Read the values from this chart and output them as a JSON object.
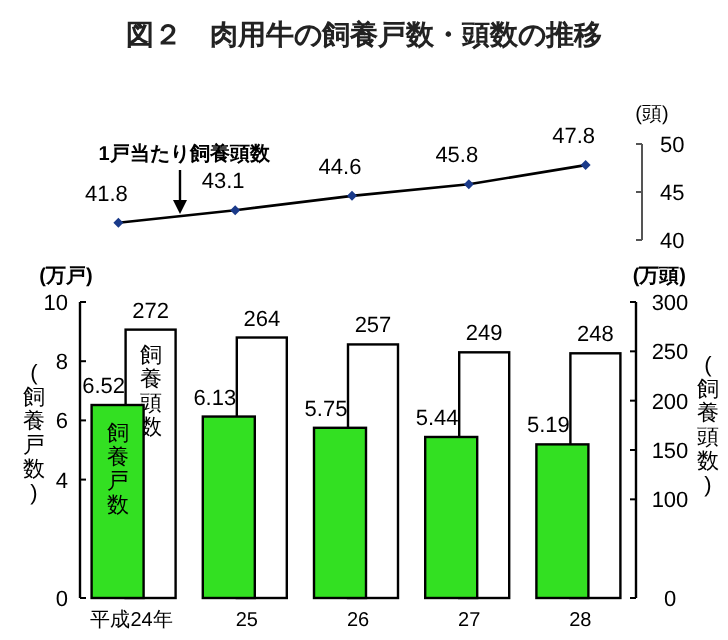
{
  "chart_data": [
    {
      "type": "line",
      "title": "図２　肉用牛の飼養戸数・頭数の推移",
      "categories": [
        null,
        null,
        null,
        null,
        null
      ],
      "series": [
        {
          "name": "1戸当たり飼養頭数",
          "color": "#000000",
          "values": [
            41.8,
            43.1,
            44.6,
            45.8,
            47.8
          ]
        }
      ],
      "ylim": [
        40,
        50
      ],
      "yticks": [
        40,
        45,
        50
      ],
      "ylabel": "(頭)",
      "data_labels": true,
      "marker": "diamond",
      "tick_labels": "y"
    },
    {
      "type": "bar",
      "categories": [
        "平成24年",
        "25",
        "26",
        "27",
        "28"
      ],
      "series": [
        {
          "name": "飼養戸数",
          "color": "#33e022",
          "values": [
            6.52,
            6.13,
            5.75,
            5.44,
            5.19
          ]
        },
        {
          "name": "飼養頭数",
          "color": "#ffffff",
          "axis": "y2",
          "values": [
            272,
            264,
            257,
            249,
            248
          ]
        }
      ],
      "ylim": [
        0,
        10
      ],
      "yticks": [
        0,
        4,
        6,
        8,
        10
      ],
      "y2lim": [
        0,
        300
      ],
      "y2ticks": [
        0,
        100,
        150,
        200,
        250,
        300
      ],
      "ylabel": "(飼養戸数)",
      "y2label": "(飼養頭数)",
      "annotations": [
        "(万戸)",
        "(万頭)"
      ],
      "data_labels": true
    }
  ]
}
